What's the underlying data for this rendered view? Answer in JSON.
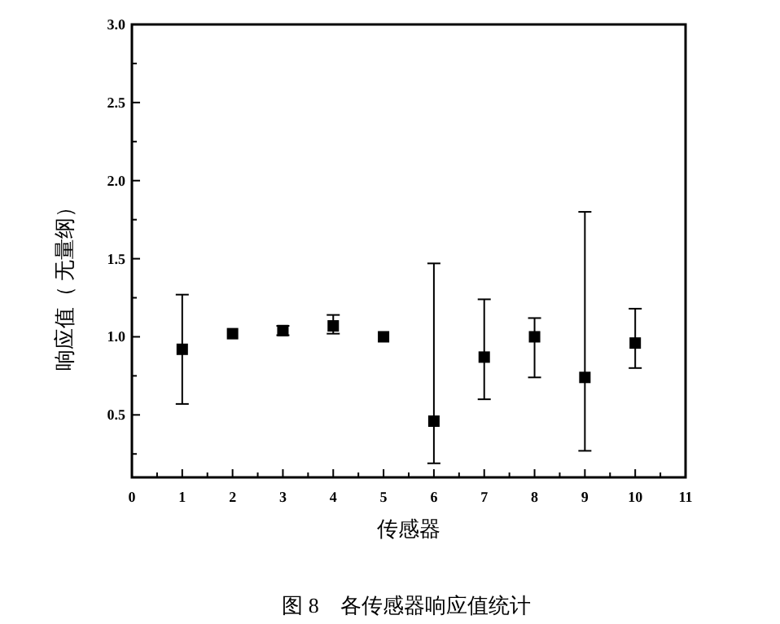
{
  "chart_data": {
    "type": "scatter",
    "xlabel": "传感器",
    "ylabel": "响应值（ 无量纲）",
    "annotations": [
      "图 8　各传感器响应值统计"
    ],
    "x": [
      1,
      2,
      3,
      4,
      5,
      6,
      7,
      8,
      9,
      10
    ],
    "series": [
      {
        "color": "#000000",
        "values": [
          0.92,
          1.02,
          1.04,
          1.07,
          1.0,
          0.46,
          0.87,
          1.0,
          0.74,
          0.96
        ],
        "errors": [
          [
            0.57,
            1.27
          ],
          null,
          [
            1.01,
            1.07
          ],
          [
            1.02,
            1.14
          ],
          null,
          [
            0.19,
            1.47
          ],
          [
            0.6,
            1.24
          ],
          [
            0.74,
            1.12
          ],
          [
            0.27,
            1.8
          ],
          [
            0.8,
            1.18
          ]
        ]
      }
    ],
    "xlim": [
      0,
      11
    ],
    "xticks": [
      0,
      {
        "value": 0.5,
        "label": null
      },
      1,
      {
        "value": 1.5,
        "label": null
      },
      2,
      {
        "value": 2.5,
        "label": null
      },
      3,
      {
        "value": 3.5,
        "label": null
      },
      4,
      {
        "value": 4.5,
        "label": null
      },
      5,
      {
        "value": 5.5,
        "label": null
      },
      6,
      {
        "value": 6.5,
        "label": null
      },
      7,
      {
        "value": 7.5,
        "label": null
      },
      8,
      {
        "value": 8.5,
        "label": null
      },
      9,
      {
        "value": 9.5,
        "label": null
      },
      10,
      {
        "value": 10.5,
        "label": null
      },
      11
    ],
    "ylim": [
      0.1,
      3.0
    ],
    "yticks": [
      {
        "value": 0.25,
        "label": null
      },
      0.5,
      {
        "value": 0.75,
        "label": null
      },
      {
        "value": 1,
        "label": "1.0"
      },
      {
        "value": 1.25,
        "label": null
      },
      1.5,
      {
        "value": 1.75,
        "label": null
      },
      {
        "value": 2,
        "label": "2.0"
      },
      {
        "value": 2.25,
        "label": null
      },
      2.5,
      {
        "value": 2.75,
        "label": null
      },
      {
        "value": 3,
        "label": "3.0"
      }
    ],
    "marker": "square",
    "grid": false
  }
}
